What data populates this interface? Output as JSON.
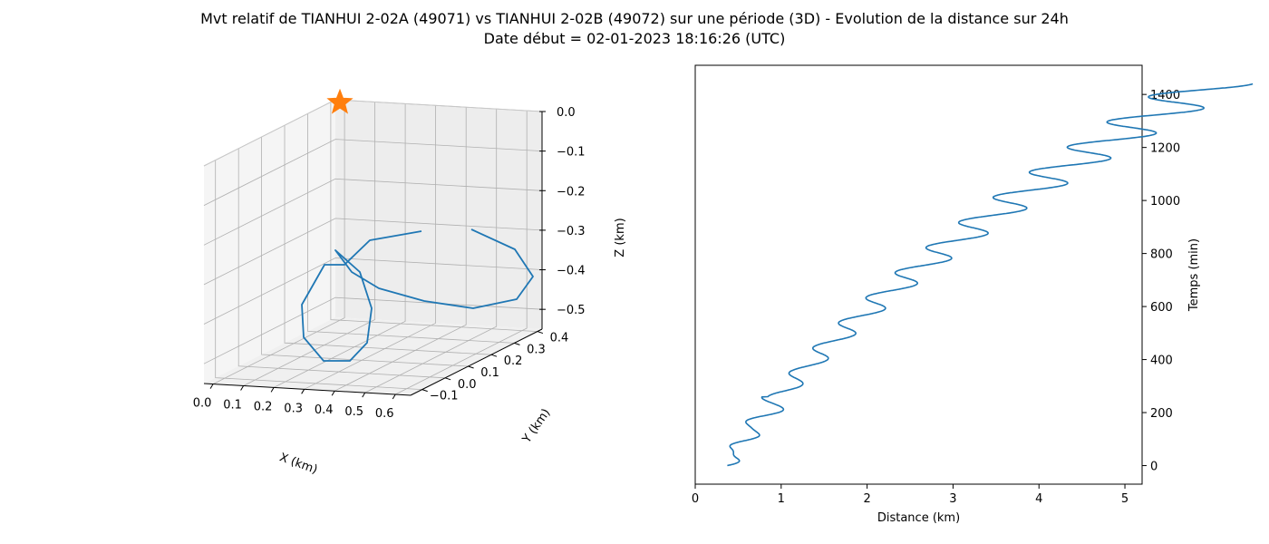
{
  "title": "Mvt relatif de TIANHUI 2-02A (49071) vs TIANHUI 2-02B (49072) sur une période (3D) - Evolution de la distance sur 24h",
  "subtitle": "Date début = 02-01-2023 18:16:26 (UTC)",
  "colors": {
    "line": "#1f77b4",
    "marker": "#ff7f0e",
    "grid": "#b0b0b0",
    "pane": "#f2f2f2"
  },
  "chart_data": [
    {
      "type": "line3d",
      "xlabel": "X (km)",
      "ylabel": "Y (km)",
      "zlabel": "Z (km)",
      "xlim": [
        -0.03,
        0.65
      ],
      "ylim": [
        -0.15,
        0.42
      ],
      "zlim": [
        -0.55,
        0.0
      ],
      "xticks": [
        "0.0",
        "0.1",
        "0.2",
        "0.3",
        "0.4",
        "0.5",
        "0.6"
      ],
      "yticks": [
        "−0.1",
        "0.0",
        "0.1",
        "0.2",
        "0.3",
        "0.4"
      ],
      "zticks": [
        "0.0",
        "−0.1",
        "−0.2",
        "−0.3",
        "−0.4",
        "−0.5"
      ],
      "grid": true,
      "marker": {
        "shape": "star",
        "x": 0.0,
        "y": 0.4,
        "z": 0.0
      },
      "trajectory": {
        "x": [
          0.18,
          0.22,
          0.26,
          0.28,
          0.29,
          0.3,
          0.32,
          0.33,
          0.33,
          0.32,
          0.3,
          0.28,
          0.27,
          0.28,
          0.32,
          0.38,
          0.45,
          0.5,
          0.52,
          0.5,
          0.46,
          0.42
        ]
      }
    },
    {
      "type": "line",
      "xlabel": "Distance (km)",
      "ylabel": "Temps (min)",
      "xlim": [
        0,
        5.2
      ],
      "ylim": [
        -70,
        1510
      ],
      "xticks": [
        0,
        1,
        2,
        3,
        4,
        5
      ],
      "yticks": [
        0,
        200,
        400,
        600,
        800,
        1000,
        1200,
        1400
      ],
      "period_min": 94.6,
      "duration_min": 1440
    }
  ]
}
